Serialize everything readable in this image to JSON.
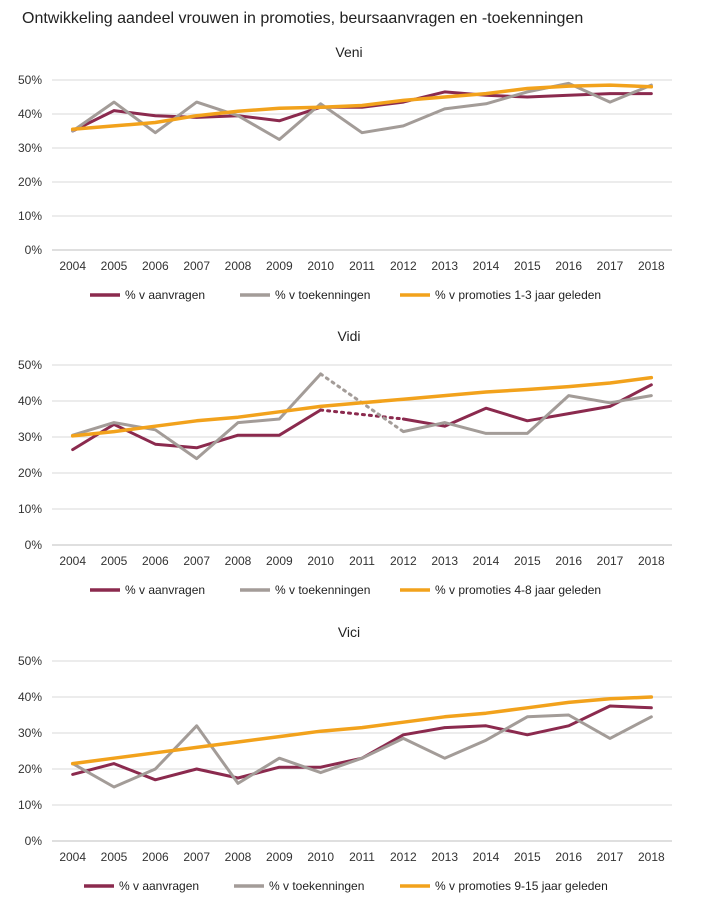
{
  "title": "Ontwikkeling aandeel vrouwen in promoties, beursaanvragen en -toekenningen",
  "colors": {
    "aanvragen": "#8b2a4e",
    "toekenningen": "#a39c98",
    "promoties": "#f2a21c",
    "grid": "#d9d9d9",
    "axis": "#bfbfbf"
  },
  "chart_data": [
    {
      "type": "line",
      "title": "Veni",
      "categories": [
        "2004",
        "2005",
        "2006",
        "2007",
        "2008",
        "2009",
        "2010",
        "2011",
        "2012",
        "2013",
        "2014",
        "2015",
        "2016",
        "2017",
        "2018"
      ],
      "ylim": [
        0,
        50
      ],
      "yticks": [
        "0%",
        "10%",
        "20%",
        "30%",
        "40%",
        "50%"
      ],
      "series": [
        {
          "name": "% v aanvragen",
          "color_key": "aanvragen",
          "values": [
            35,
            41,
            39.5,
            39,
            39.5,
            38,
            42,
            42,
            43.5,
            46.5,
            45.5,
            45,
            45.5,
            46,
            46
          ]
        },
        {
          "name": "% v toekenningen",
          "color_key": "toekenningen",
          "values": [
            35,
            43.5,
            34.5,
            43.5,
            39.5,
            32.5,
            43,
            34.5,
            36.5,
            41.5,
            43,
            46.5,
            49,
            43.5,
            48.5
          ]
        },
        {
          "name": "% v promoties 1-3 jaar geleden",
          "color_key": "promoties",
          "values": [
            35.5,
            36.5,
            37.5,
            39.5,
            40.8,
            41.7,
            42,
            42.5,
            44,
            45,
            46,
            47.5,
            48.2,
            48.5,
            48
          ]
        }
      ]
    },
    {
      "type": "line",
      "title": "Vidi",
      "categories": [
        "2004",
        "2005",
        "2006",
        "2007",
        "2008",
        "2009",
        "2010",
        "2011",
        "2012",
        "2013",
        "2014",
        "2015",
        "2016",
        "2017",
        "2018"
      ],
      "ylim": [
        0,
        50
      ],
      "yticks": [
        "0%",
        "10%",
        "20%",
        "30%",
        "40%",
        "50%"
      ],
      "series": [
        {
          "name": "% v aanvragen",
          "color_key": "aanvragen",
          "values": [
            26.5,
            33.5,
            28,
            27,
            30.5,
            30.5,
            37.5,
            null,
            35,
            33,
            38,
            34.5,
            36.5,
            38.5,
            44.5
          ],
          "dotted_gap": [
            6,
            8
          ]
        },
        {
          "name": "% v toekenningen",
          "color_key": "toekenningen",
          "values": [
            30.5,
            34,
            32,
            24,
            34,
            35,
            47.5,
            null,
            31.5,
            34,
            31,
            31,
            41.5,
            39.5,
            41.5
          ],
          "dotted_gap": [
            6,
            8
          ]
        },
        {
          "name": "% v promoties 4-8 jaar geleden",
          "color_key": "promoties",
          "values": [
            30.3,
            31.5,
            33,
            34.5,
            35.5,
            37,
            38.5,
            39.5,
            40.5,
            41.5,
            42.5,
            43.2,
            44,
            45,
            46.5
          ]
        }
      ]
    },
    {
      "type": "line",
      "title": "Vici",
      "categories": [
        "2004",
        "2005",
        "2006",
        "2007",
        "2008",
        "2009",
        "2010",
        "2011",
        "2012",
        "2013",
        "2014",
        "2015",
        "2016",
        "2017",
        "2018"
      ],
      "ylim": [
        0,
        50
      ],
      "yticks": [
        "0%",
        "10%",
        "20%",
        "30%",
        "40%",
        "50%"
      ],
      "series": [
        {
          "name": "% v aanvragen",
          "color_key": "aanvragen",
          "values": [
            18.5,
            21.5,
            17,
            20,
            17.5,
            20.5,
            20.5,
            23,
            29.5,
            31.5,
            32,
            29.5,
            32,
            37.5,
            37
          ]
        },
        {
          "name": "% v toekenningen",
          "color_key": "toekenningen",
          "values": [
            21.5,
            15,
            20,
            32,
            16,
            23,
            19,
            23,
            28.5,
            23,
            28,
            34.5,
            35,
            28.5,
            34.5
          ]
        },
        {
          "name": "% v promoties 9-15 jaar geleden",
          "color_key": "promoties",
          "values": [
            21.5,
            23,
            24.5,
            26,
            27.5,
            29,
            30.5,
            31.5,
            33,
            34.5,
            35.5,
            37,
            38.5,
            39.5,
            40
          ]
        }
      ]
    }
  ]
}
